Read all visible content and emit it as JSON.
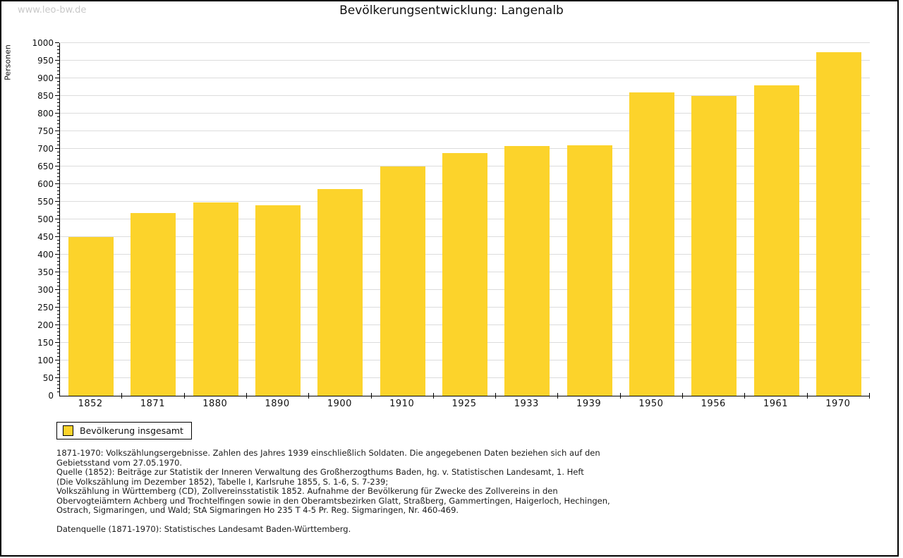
{
  "watermark": "www.leo-bw.de",
  "title": "Bevölkerungsentwicklung: Langenalb",
  "chart_data": {
    "type": "bar",
    "title": "Bevölkerungsentwicklung: Langenalb",
    "xlabel": "",
    "ylabel": "Personen",
    "ylim": [
      0,
      1000
    ],
    "ytick_step": 50,
    "yminor_step": 10,
    "grid": true,
    "bar_color": "#FCD32B",
    "gridline_color": "#dcdcdc",
    "legend_position": "bottom-left",
    "categories": [
      "1852",
      "1871",
      "1880",
      "1890",
      "1900",
      "1910",
      "1925",
      "1933",
      "1939",
      "1950",
      "1956",
      "1961",
      "1970"
    ],
    "series": [
      {
        "name": "Bevölkerung insgesamt",
        "values": [
          451,
          518,
          548,
          541,
          586,
          651,
          689,
          708,
          711,
          861,
          851,
          881,
          975
        ]
      }
    ]
  },
  "legend": {
    "label": "Bevölkerung insgesamt",
    "swatch_color": "#FCD32B"
  },
  "footnotes": {
    "lines": [
      "1871-1970: Volkszählungsergebnisse. Zahlen des Jahres 1939 einschließlich Soldaten. Die angegebenen Daten beziehen sich auf den",
      "Gebietsstand vom 27.05.1970.",
      "Quelle (1852): Beiträge zur Statistik der Inneren Verwaltung des Großherzogthums Baden, hg. v. Statistischen Landesamt, 1. Heft",
      "(Die Volkszählung im Dezember 1852), Tabelle I, Karlsruhe 1855, S. 1-6, S. 7-239;",
      "Volkszählung in Württemberg (CD), Zollvereinsstatistik 1852. Aufnahme der Bevölkerung für Zwecke des Zollvereins in den",
      "Obervogteiämtern Achberg und Trochtelfingen sowie in den Oberamtsbezirken Glatt, Straßberg, Gammertingen, Haigerloch, Hechingen,",
      "Ostrach, Sigmaringen, und Wald; StA Sigmaringen Ho 235 T 4-5 Pr. Reg. Sigmaringen, Nr. 460-469."
    ],
    "datasource": "Datenquelle (1871-1970): Statistisches Landesamt Baden-Württemberg."
  }
}
